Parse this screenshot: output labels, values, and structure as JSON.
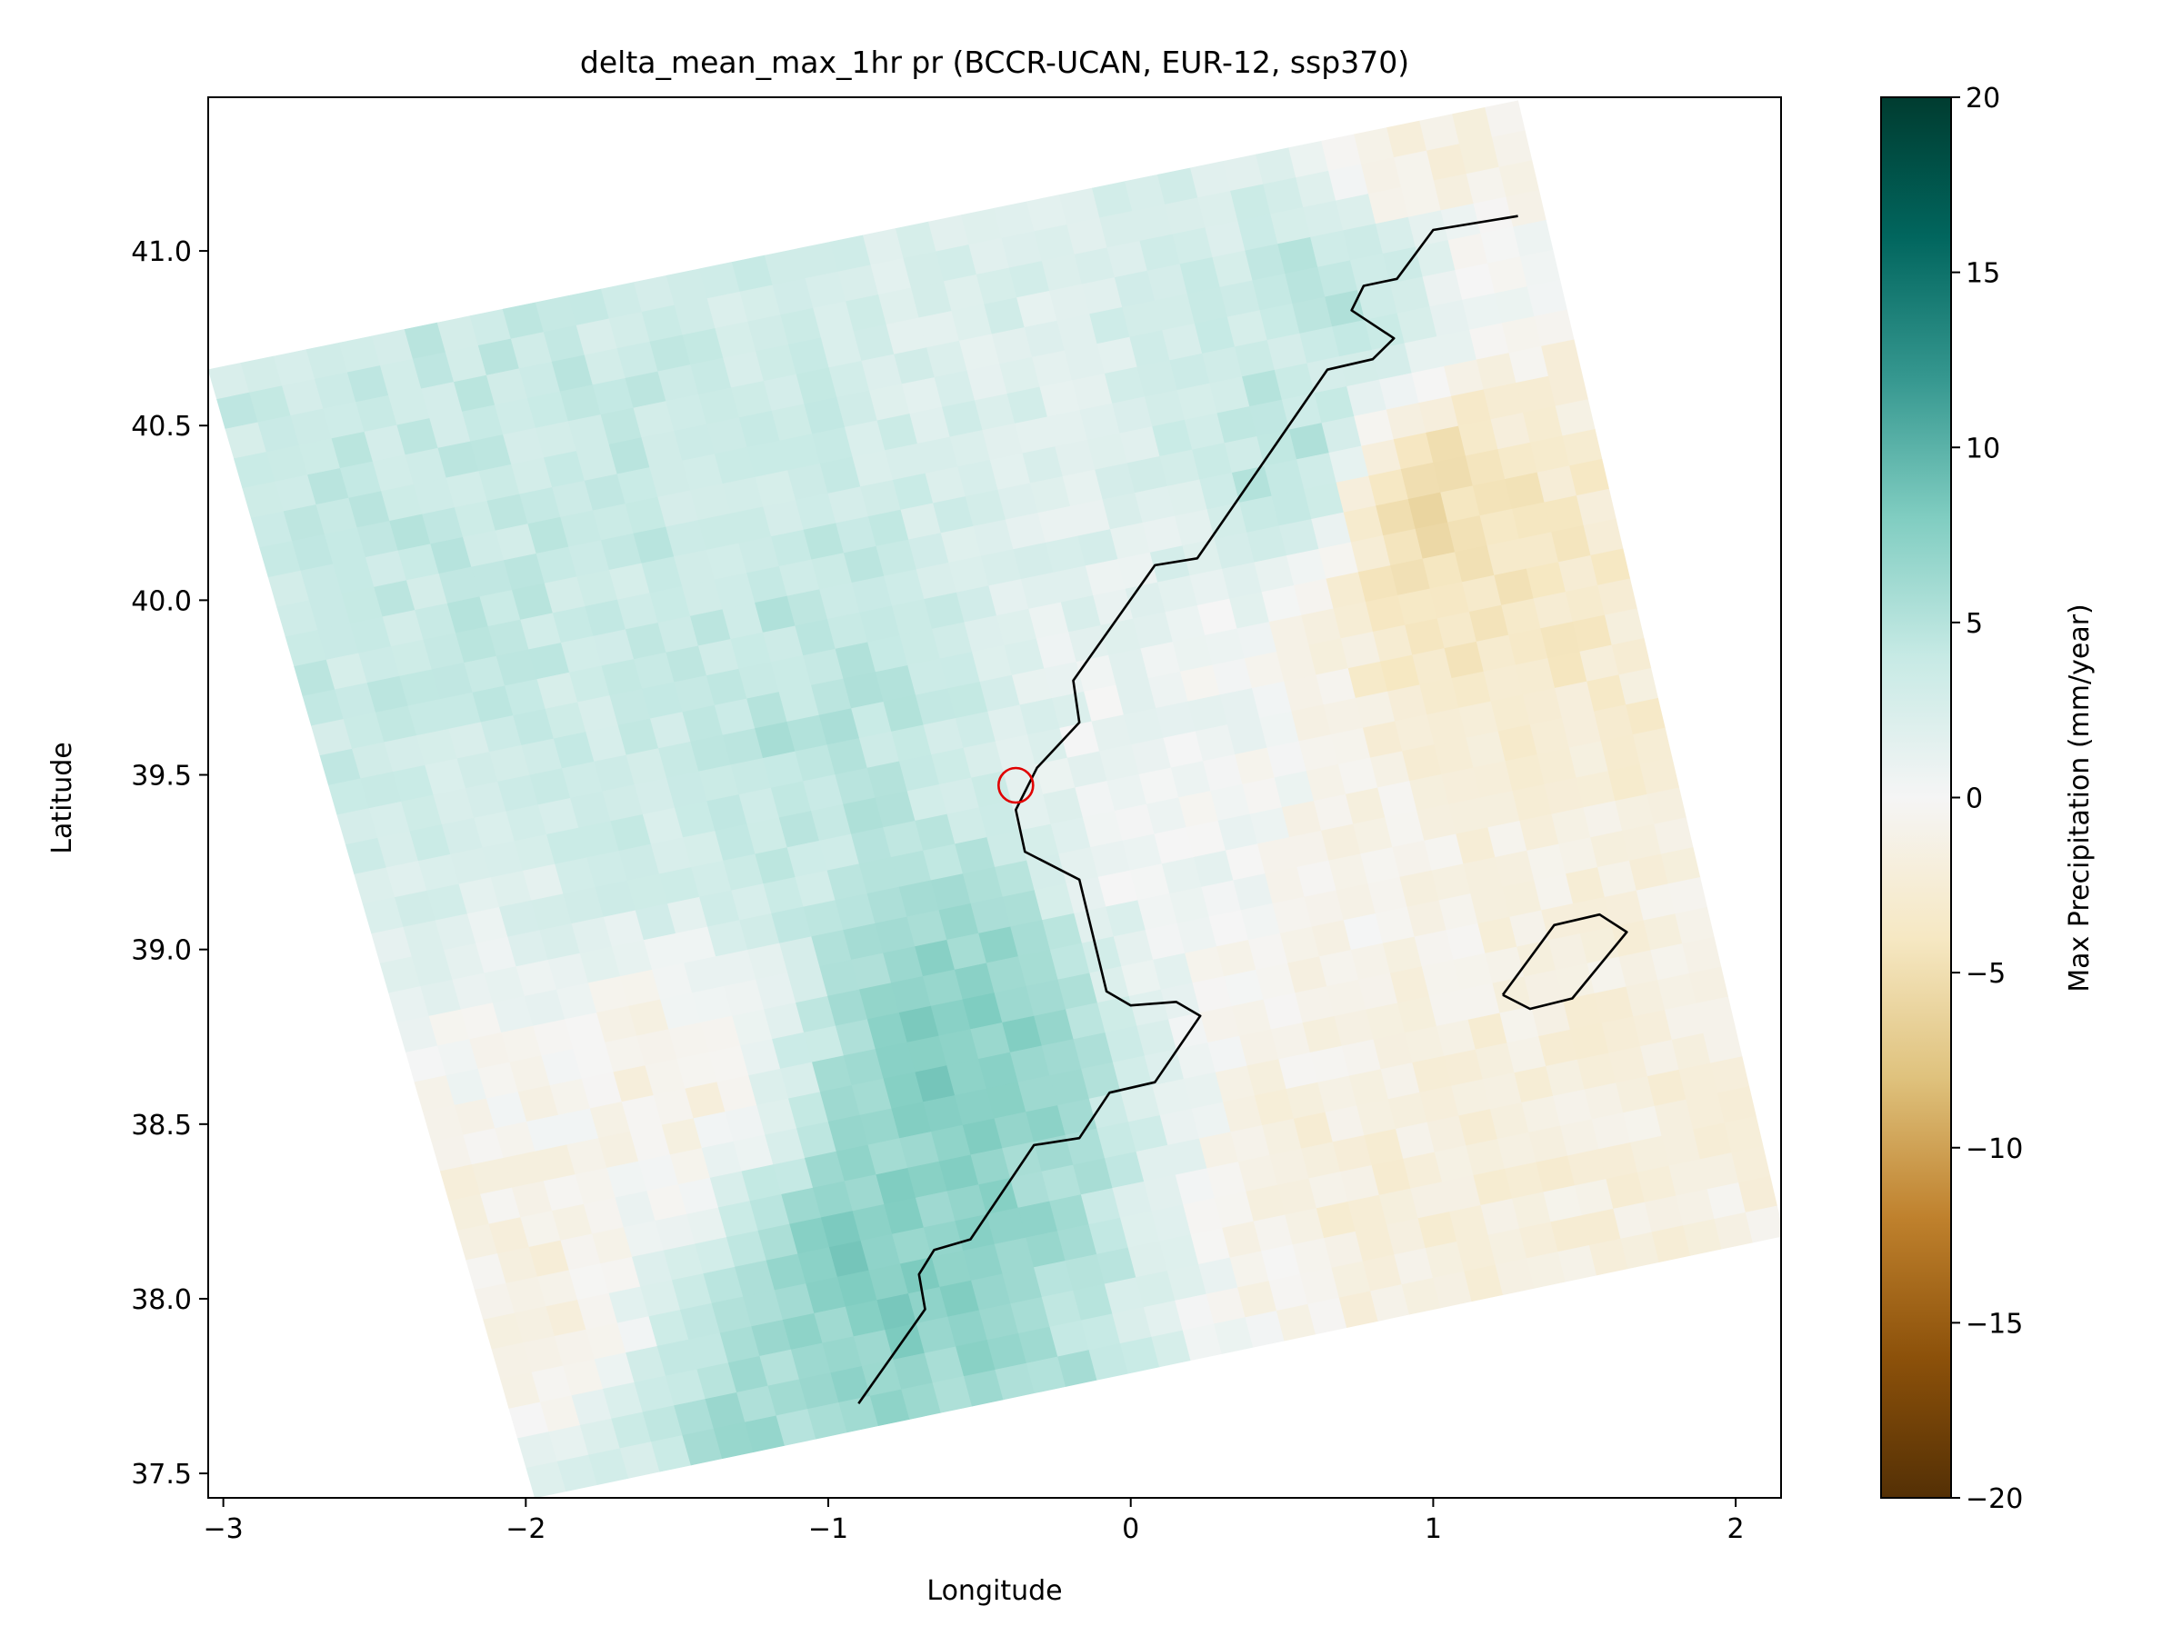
{
  "chart_data": {
    "type": "heatmap",
    "title": "delta_mean_max_1hr pr (BCCR-UCAN, EUR-12, ssp370)",
    "xlabel": "Longitude",
    "ylabel": "Latitude",
    "xlim": [
      -3.05,
      2.15
    ],
    "ylim": [
      37.43,
      41.44
    ],
    "x_ticks": [
      -3,
      -2,
      -1,
      0,
      1,
      2
    ],
    "x_tick_labels": [
      "−3",
      "−2",
      "−1",
      "0",
      "1",
      "2"
    ],
    "y_ticks": [
      37.5,
      38.0,
      38.5,
      39.0,
      39.5,
      40.0,
      40.5,
      41.0
    ],
    "y_tick_labels": [
      "37.5",
      "38.0",
      "38.5",
      "39.0",
      "39.5",
      "40.0",
      "40.5",
      "41.0"
    ],
    "grid": false,
    "colorbar": {
      "label": "Max Precipitation (mm/year)",
      "min": -20,
      "max": 20,
      "ticks": [
        20,
        15,
        10,
        5,
        0,
        -5,
        -10,
        -15,
        -20
      ],
      "tick_labels": [
        "20",
        "15",
        "10",
        "5",
        "0",
        "−5",
        "−10",
        "−15",
        "−20"
      ],
      "colormap": "BrBG",
      "colors": [
        "#543005",
        "#8c510a",
        "#bf812d",
        "#dfc27d",
        "#f6e8c3",
        "#f5f5f5",
        "#c7eae5",
        "#80cdc1",
        "#35978f",
        "#01665e",
        "#003c30"
      ]
    },
    "domain_corners_lonlat": [
      [
        -3.05,
        40.66
      ],
      [
        1.28,
        41.43
      ],
      [
        2.16,
        38.18
      ],
      [
        -1.97,
        37.43
      ]
    ],
    "grid_shape": {
      "rows": 38,
      "cols": 40
    },
    "value_field_anchors": [
      {
        "lon": -2.2,
        "lat": 40.1,
        "value": 4
      },
      {
        "lon": -1.5,
        "lat": 39.5,
        "value": 3
      },
      {
        "lon": -1.2,
        "lat": 39.6,
        "value": 5
      },
      {
        "lon": -0.6,
        "lat": 38.7,
        "value": 8
      },
      {
        "lon": -0.85,
        "lat": 38.1,
        "value": 8
      },
      {
        "lon": -1.1,
        "lat": 37.8,
        "value": 6
      },
      {
        "lon": 0.6,
        "lat": 40.4,
        "value": 6
      },
      {
        "lon": 0.7,
        "lat": 40.9,
        "value": 5
      },
      {
        "lon": 0.9,
        "lat": 40.3,
        "value": -7
      },
      {
        "lon": 1.1,
        "lat": 40.0,
        "value": -4
      },
      {
        "lon": 0.9,
        "lat": 41.3,
        "value": -2
      },
      {
        "lon": 0.8,
        "lat": 38.4,
        "value": -2
      },
      {
        "lon": 1.2,
        "lat": 38.5,
        "value": -2
      },
      {
        "lon": -1.5,
        "lat": 38.6,
        "value": -1.5
      },
      {
        "lon": -2.0,
        "lat": 38.1,
        "value": -1.5
      },
      {
        "lon": 0.2,
        "lat": 39.4,
        "value": 0.5
      },
      {
        "lon": 0.7,
        "lat": 39.0,
        "value": -1
      }
    ],
    "coastline": [
      [
        -0.9,
        37.7
      ],
      [
        -0.68,
        37.97
      ],
      [
        -0.7,
        38.07
      ],
      [
        -0.65,
        38.14
      ],
      [
        -0.53,
        38.17
      ],
      [
        -0.32,
        38.44
      ],
      [
        -0.17,
        38.46
      ],
      [
        -0.07,
        38.59
      ],
      [
        0.08,
        38.62
      ],
      [
        0.23,
        38.81
      ],
      [
        0.15,
        38.85
      ],
      [
        0.0,
        38.84
      ],
      [
        -0.08,
        38.88
      ],
      [
        -0.17,
        39.2
      ],
      [
        -0.35,
        39.28
      ],
      [
        -0.38,
        39.4
      ],
      [
        -0.31,
        39.52
      ],
      [
        -0.17,
        39.65
      ],
      [
        -0.19,
        39.77
      ],
      [
        0.08,
        40.1
      ],
      [
        0.22,
        40.12
      ],
      [
        0.65,
        40.66
      ],
      [
        0.8,
        40.69
      ],
      [
        0.87,
        40.75
      ],
      [
        0.73,
        40.83
      ],
      [
        0.77,
        40.9
      ],
      [
        0.88,
        40.92
      ],
      [
        1.0,
        41.06
      ],
      [
        1.28,
        41.1
      ]
    ],
    "island_outline": [
      [
        1.23,
        38.87
      ],
      [
        1.4,
        39.07
      ],
      [
        1.55,
        39.1
      ],
      [
        1.64,
        39.05
      ],
      [
        1.46,
        38.86
      ],
      [
        1.32,
        38.83
      ],
      [
        1.23,
        38.87
      ]
    ],
    "marker": {
      "shape": "circle",
      "lon": -0.38,
      "lat": 39.47,
      "color": "#e00000"
    }
  }
}
